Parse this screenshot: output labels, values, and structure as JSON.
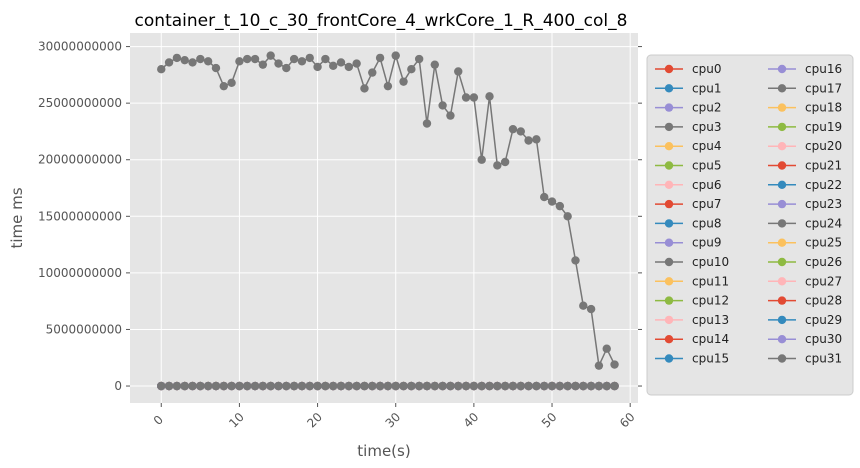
{
  "chart_data": {
    "type": "line",
    "title": "container_t_10_c_30_frontCore_4_wrkCore_1_R_400_col_8",
    "xlabel": "time(s)",
    "ylabel": "time ms",
    "xlim": [
      -4,
      61
    ],
    "ylim": [
      -1500000000,
      31200000000
    ],
    "xticks": [
      0,
      10,
      20,
      30,
      40,
      50,
      60
    ],
    "yticks": [
      0,
      5000000000,
      10000000000,
      15000000000,
      20000000000,
      25000000000,
      30000000000
    ],
    "ytick_labels": [
      "0",
      "5000000000",
      "10000000000",
      "15000000000",
      "20000000000",
      "25000000000",
      "30000000000"
    ],
    "grid": true,
    "legend_position": "right-outside",
    "x": [
      0,
      1,
      2,
      3,
      4,
      5,
      6,
      7,
      8,
      9,
      10,
      11,
      12,
      13,
      14,
      15,
      16,
      17,
      18,
      19,
      20,
      21,
      22,
      23,
      24,
      25,
      26,
      27,
      28,
      29,
      30,
      31,
      32,
      33,
      34,
      35,
      36,
      37,
      38,
      39,
      40,
      41,
      42,
      43,
      44,
      45,
      46,
      47,
      48,
      49,
      50,
      51,
      52,
      53,
      54,
      55,
      56,
      57,
      58
    ],
    "series": [
      {
        "name": "cpu0",
        "color": "#E24A33",
        "zero": true
      },
      {
        "name": "cpu1",
        "color": "#348ABD",
        "zero": true
      },
      {
        "name": "cpu2",
        "color": "#988ED5",
        "zero": true
      },
      {
        "name": "cpu3",
        "color": "#777777",
        "zero": true
      },
      {
        "name": "cpu4",
        "color": "#FBC15E",
        "zero": true
      },
      {
        "name": "cpu5",
        "color": "#8EBA42",
        "zero": true
      },
      {
        "name": "cpu6",
        "color": "#FFB5B8",
        "zero": true
      },
      {
        "name": "cpu7",
        "color": "#E24A33",
        "zero": true
      },
      {
        "name": "cpu8",
        "color": "#348ABD",
        "zero": true
      },
      {
        "name": "cpu9",
        "color": "#988ED5",
        "zero": true
      },
      {
        "name": "cpu10",
        "color": "#777777",
        "zero": true
      },
      {
        "name": "cpu11",
        "color": "#FBC15E",
        "zero": true
      },
      {
        "name": "cpu12",
        "color": "#8EBA42",
        "zero": true
      },
      {
        "name": "cpu13",
        "color": "#FFB5B8",
        "zero": true
      },
      {
        "name": "cpu14",
        "color": "#E24A33",
        "zero": true
      },
      {
        "name": "cpu15",
        "color": "#348ABD",
        "zero": true
      },
      {
        "name": "cpu16",
        "color": "#988ED5",
        "zero": true
      },
      {
        "name": "cpu17",
        "color": "#777777",
        "zero": true
      },
      {
        "name": "cpu18",
        "color": "#FBC15E",
        "zero": true
      },
      {
        "name": "cpu19",
        "color": "#8EBA42",
        "zero": true
      },
      {
        "name": "cpu20",
        "color": "#FFB5B8",
        "zero": true
      },
      {
        "name": "cpu21",
        "color": "#E24A33",
        "zero": true
      },
      {
        "name": "cpu22",
        "color": "#348ABD",
        "zero": true
      },
      {
        "name": "cpu23",
        "color": "#988ED5",
        "zero": true
      },
      {
        "name": "cpu24",
        "color": "#777777",
        "zero": false,
        "values": [
          28000000000,
          28600000000,
          29000000000,
          28800000000,
          28600000000,
          28900000000,
          28700000000,
          28100000000,
          26500000000,
          26800000000,
          28700000000,
          28900000000,
          28900000000,
          28400000000,
          29200000000,
          28500000000,
          28100000000,
          28900000000,
          28700000000,
          29000000000,
          28200000000,
          28900000000,
          28300000000,
          28600000000,
          28200000000,
          28500000000,
          26300000000,
          27700000000,
          29000000000,
          26500000000,
          29200000000,
          26900000000,
          28000000000,
          28900000000,
          23200000000,
          28400000000,
          24800000000,
          23900000000,
          27800000000,
          25500000000,
          25500000000,
          20000000000,
          25600000000,
          19500000000,
          19800000000,
          22700000000,
          22500000000,
          21700000000,
          21800000000,
          16700000000,
          16300000000,
          15900000000,
          15000000000,
          11100000000,
          7100000000,
          6800000000,
          1800000000,
          3300000000,
          1900000000
        ]
      },
      {
        "name": "cpu25",
        "color": "#FBC15E",
        "zero": true
      },
      {
        "name": "cpu26",
        "color": "#8EBA42",
        "zero": true
      },
      {
        "name": "cpu27",
        "color": "#FFB5B8",
        "zero": true
      },
      {
        "name": "cpu28",
        "color": "#E24A33",
        "zero": true
      },
      {
        "name": "cpu29",
        "color": "#348ABD",
        "zero": true
      },
      {
        "name": "cpu30",
        "color": "#988ED5",
        "zero": true
      },
      {
        "name": "cpu31",
        "color": "#777777",
        "zero": true
      }
    ]
  }
}
